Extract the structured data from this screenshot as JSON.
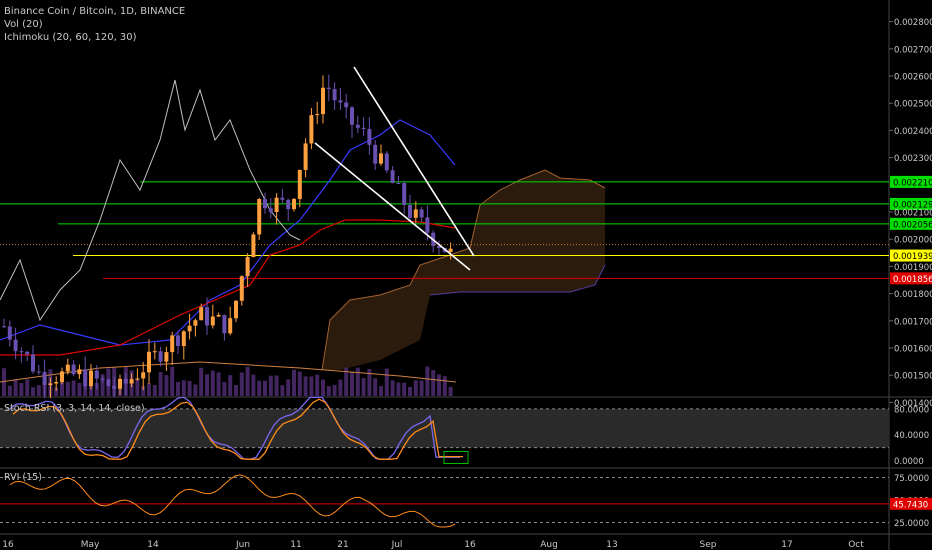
{
  "legend": {
    "symbol_title": "Binance Coin / Bitcoin, 1D, BINANCE",
    "volume": "Vol (20)",
    "ichimoku": "Ichimoku (20, 60, 120, 30)"
  },
  "price_axis": {
    "ticks": [
      "0.0028000",
      "0.0027000",
      "0.0026000",
      "0.0025000",
      "0.0024000",
      "0.0023000",
      "0.0021000",
      "0.0020000",
      "0.0019000",
      "0.0018000",
      "0.0017000",
      "0.0016000",
      "0.0015000",
      "0.0014000"
    ],
    "tick_values": [
      0.0028,
      0.0027,
      0.0026,
      0.0025,
      0.0024,
      0.0023,
      0.0021,
      0.002,
      0.0019,
      0.0018,
      0.0017,
      0.0016,
      0.0015,
      0.0014
    ],
    "min": 0.00134,
    "max": 0.00285
  },
  "levels": [
    {
      "label": "0.0022107",
      "value": 0.0022107,
      "color": "#00e000",
      "text_color": "#000000",
      "style": "solid"
    },
    {
      "label": "0.0021297",
      "value": 0.0021297,
      "color": "#00e000",
      "text_color": "#000000",
      "style": "solid"
    },
    {
      "label": "0.0020565",
      "value": 0.0020565,
      "color": "#00e000",
      "text_color": "#000000",
      "style": "solid"
    },
    {
      "label": "0.0019399",
      "value": 0.0019399,
      "color": "#ffff00",
      "text_color": "#000000",
      "style": "solid"
    },
    {
      "label": "0.0018561",
      "value": 0.0018561,
      "color": "#e00000",
      "text_color": "#ffffff",
      "style": "solid"
    },
    {
      "value": 0.00198,
      "color": "#c87830",
      "style": "dotted"
    }
  ],
  "stoch_pane": {
    "title": "Stoch RSI (3, 3, 14, 14, close)",
    "ticks": [
      "80.0000",
      "40.0000",
      "0.0000"
    ],
    "tick_values": [
      80,
      40,
      0
    ],
    "k_color": "#7b68ee",
    "d_color": "#ff8c1a"
  },
  "rvi_pane": {
    "title": "RVI (15)",
    "ticks": [
      "75.0000",
      "50.0000",
      "25.0000"
    ],
    "tick_values": [
      75,
      50,
      25
    ],
    "current": "45.7430",
    "current_value": 45.743,
    "line_color": "#ff8c1a",
    "badge_color": "#e00000"
  },
  "time_axis": {
    "ticks": [
      "16",
      "May",
      "14",
      "Jun",
      "11",
      "21",
      "Jul",
      "16",
      "Aug",
      "13",
      "Sep",
      "17",
      "Oct"
    ]
  },
  "colors": {
    "background": "#000000",
    "bull_candle": "#ffa040",
    "bear_candle": "#6a50b0",
    "tenkan": "#3a3aff",
    "kijun": "#e00000",
    "chikou": "#c0c0c0",
    "cloud_fill": "#3a2410",
    "axis_text": "#c8c8c8",
    "wedge": "#ffffff"
  }
}
